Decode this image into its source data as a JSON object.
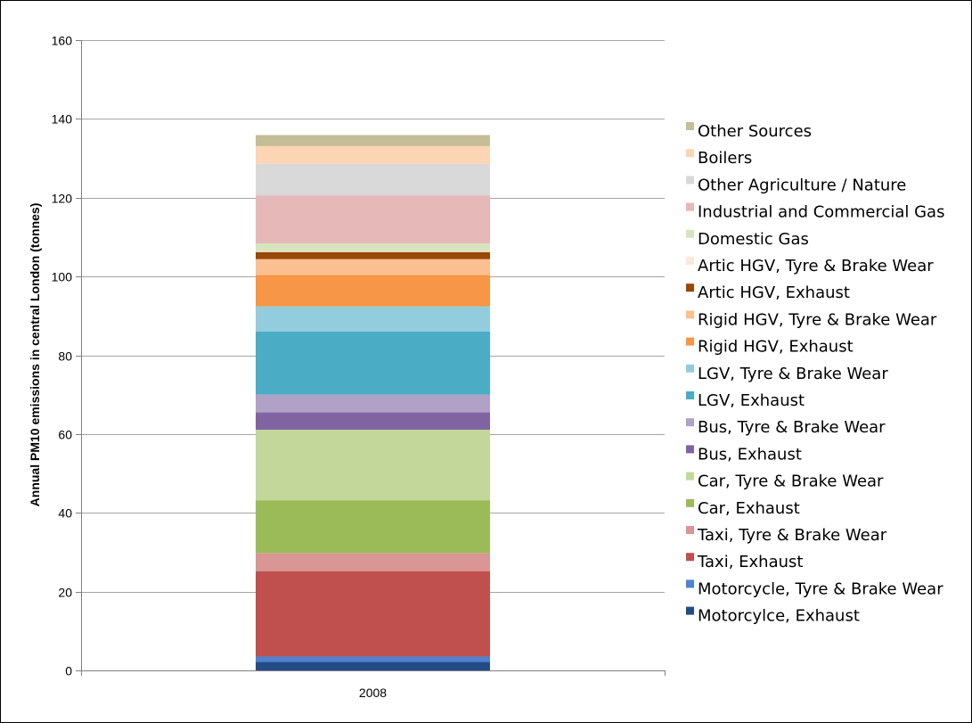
{
  "chart_data": {
    "type": "bar",
    "stacked": true,
    "title": "",
    "xlabel": "",
    "ylabel": "Annual PM10 emissions in central London (tonnes)",
    "ylim": [
      0,
      160
    ],
    "yticks": [
      0,
      20,
      40,
      60,
      80,
      100,
      120,
      140,
      160
    ],
    "categories": [
      "2008"
    ],
    "grid": "horizontal",
    "legend_position": "right",
    "series": [
      {
        "name": "Motorcylce, Exhaust",
        "color": "#234b86",
        "values": [
          2.2
        ]
      },
      {
        "name": "Motorcycle, Tyre & Brake Wear",
        "color": "#4d83d4",
        "values": [
          1.3
        ]
      },
      {
        "name": "Taxi, Exhaust",
        "color": "#c0504d",
        "values": [
          21.7
        ]
      },
      {
        "name": "Taxi, Tyre & Brake Wear",
        "color": "#d99694",
        "values": [
          4.6
        ]
      },
      {
        "name": "Car, Exhaust",
        "color": "#9bbb59",
        "values": [
          13.4
        ]
      },
      {
        "name": "Car, Tyre & Brake Wear",
        "color": "#c4d79b",
        "values": [
          17.9
        ]
      },
      {
        "name": "Bus, Exhaust",
        "color": "#8064a2",
        "values": [
          4.4
        ]
      },
      {
        "name": "Bus, Tyre & Brake Wear",
        "color": "#b2a1c7",
        "values": [
          4.5
        ]
      },
      {
        "name": "LGV, Exhaust",
        "color": "#4bacc6",
        "values": [
          16.0
        ]
      },
      {
        "name": "LGV, Tyre & Brake Wear",
        "color": "#93cddd",
        "values": [
          6.4
        ]
      },
      {
        "name": "Rigid HGV, Exhaust",
        "color": "#f79646",
        "values": [
          8.0
        ]
      },
      {
        "name": "Rigid HGV, Tyre & Brake Wear",
        "color": "#fac090",
        "values": [
          4.0
        ]
      },
      {
        "name": "Artic HGV, Exhaust",
        "color": "#984807",
        "values": [
          1.8
        ]
      },
      {
        "name": "Artic HGV, Tyre & Brake Wear",
        "color": "#fde9d9",
        "values": [
          0.2
        ]
      },
      {
        "name": "Domestic Gas",
        "color": "#d7e4bd",
        "values": [
          2.0
        ]
      },
      {
        "name": "Industrial and Commercial Gas",
        "color": "#e6b9b8",
        "values": [
          12.2
        ]
      },
      {
        "name": "Other Agriculture / Nature",
        "color": "#d9d9d9",
        "values": [
          8.0
        ]
      },
      {
        "name": "Boilers",
        "color": "#fcd5b5",
        "values": [
          4.5
        ]
      },
      {
        "name": "Other Sources",
        "color": "#c4bd97",
        "values": [
          2.8
        ]
      }
    ]
  }
}
